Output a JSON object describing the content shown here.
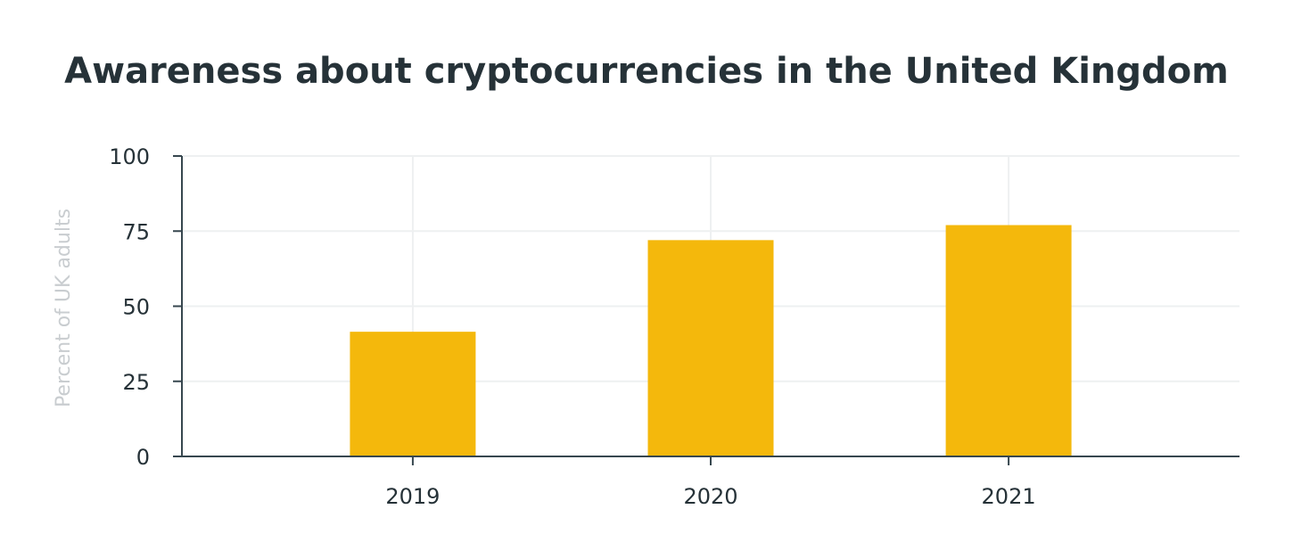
{
  "chart_data": {
    "type": "bar",
    "title": "Awareness about cryptocurrencies in the United Kingdom",
    "xlabel": "",
    "ylabel": "Percent of UK adults",
    "categories": [
      "2019",
      "2020",
      "2021"
    ],
    "values": [
      41.5,
      72,
      77
    ],
    "ylim": [
      0,
      100
    ],
    "yticks": [
      0,
      25,
      50,
      75,
      100
    ],
    "grid": true,
    "legend": "none",
    "colors": {
      "bar": "#f4b80c",
      "axis": "#37474f",
      "grid": "#eef0f1",
      "text": "#263238",
      "ylabel": "#c9cdd0"
    }
  }
}
